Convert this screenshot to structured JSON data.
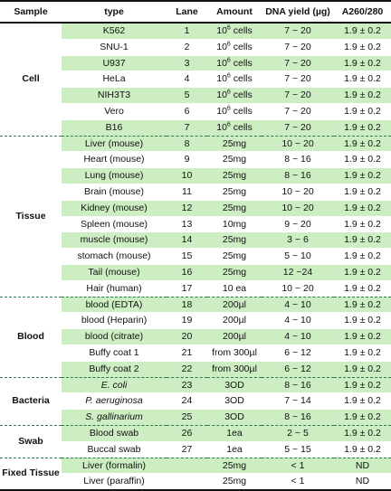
{
  "headers": [
    "Sample",
    "type",
    "Lane",
    "Amount",
    "DNA yield (µg)",
    "A260/280"
  ],
  "groups": [
    {
      "name": "Cell",
      "rows": [
        {
          "type": "K562",
          "lane": "1",
          "amount_base": "10",
          "amount_sup": "6",
          "amount_unit": " cells",
          "dna": "7 ~ 20",
          "a260": "1.9 ± 0.2"
        },
        {
          "type": "SNU-1",
          "lane": "2",
          "amount_base": "10",
          "amount_sup": "6",
          "amount_unit": " cells",
          "dna": "7 ~ 20",
          "a260": "1.9 ± 0.2"
        },
        {
          "type": "U937",
          "lane": "3",
          "amount_base": "10",
          "amount_sup": "6",
          "amount_unit": " cells",
          "dna": "7 ~ 20",
          "a260": "1.9 ± 0.2"
        },
        {
          "type": "HeLa",
          "lane": "4",
          "amount_base": "10",
          "amount_sup": "6",
          "amount_unit": " cells",
          "dna": "7 ~ 20",
          "a260": "1.9 ± 0.2"
        },
        {
          "type": "NIH3T3",
          "lane": "5",
          "amount_base": "10",
          "amount_sup": "6",
          "amount_unit": " cells",
          "dna": "7 ~ 20",
          "a260": "1.9 ± 0.2"
        },
        {
          "type": "Vero",
          "lane": "6",
          "amount_base": "10",
          "amount_sup": "6",
          "amount_unit": " cells",
          "dna": "7 ~ 20",
          "a260": "1.9 ± 0.2"
        },
        {
          "type": "B16",
          "lane": "7",
          "amount_base": "10",
          "amount_sup": "6",
          "amount_unit": " cells",
          "dna": "7 ~ 20",
          "a260": "1.9 ± 0.2"
        }
      ]
    },
    {
      "name": "Tissue",
      "rows": [
        {
          "type": "Liver (mouse)",
          "lane": "8",
          "amount": "25mg",
          "dna": "10 ~ 20",
          "a260": "1.9 ± 0.2"
        },
        {
          "type": "Heart (mouse)",
          "lane": "9",
          "amount": "25mg",
          "dna": "8 ~ 16",
          "a260": "1.9 ± 0.2"
        },
        {
          "type": "Lung (mouse)",
          "lane": "10",
          "amount": "25mg",
          "dna": "8 ~ 16",
          "a260": "1.9 ± 0.2"
        },
        {
          "type": "Brain (mouse)",
          "lane": "11",
          "amount": "25mg",
          "dna": "10 ~ 20",
          "a260": "1.9 ± 0.2"
        },
        {
          "type": "Kidney (mouse)",
          "lane": "12",
          "amount": "25mg",
          "dna": "10 ~ 20",
          "a260": "1.9 ± 0.2"
        },
        {
          "type": "Spleen (mouse)",
          "lane": "13",
          "amount": "10mg",
          "dna": "9 ~ 20",
          "a260": "1.9 ± 0.2"
        },
        {
          "type": "muscle (mouse)",
          "lane": "14",
          "amount": "25mg",
          "dna": "3 ~ 6",
          "a260": "1.9 ± 0.2"
        },
        {
          "type": "stomach (mouse)",
          "lane": "15",
          "amount": "25mg",
          "dna": "5 ~ 10",
          "a260": "1.9 ± 0.2"
        },
        {
          "type": "Tail (mouse)",
          "lane": "16",
          "amount": "25mg",
          "dna": "12 ~24",
          "a260": "1.9 ± 0.2"
        },
        {
          "type": "Hair (human)",
          "lane": "17",
          "amount": "10 ea",
          "dna": "10 ~ 20",
          "a260": "1.9 ± 0.2"
        }
      ]
    },
    {
      "name": "Blood",
      "rows": [
        {
          "type": "blood (EDTA)",
          "lane": "18",
          "amount": "200µl",
          "dna": "4 ~ 10",
          "a260": "1.9 ± 0.2"
        },
        {
          "type": "blood (Heparin)",
          "lane": "19",
          "amount": "200µl",
          "dna": "4 ~ 10",
          "a260": "1.9 ± 0.2"
        },
        {
          "type": "blood (citrate)",
          "lane": "20",
          "amount": "200µl",
          "dna": "4 ~ 10",
          "a260": "1.9 ± 0.2"
        },
        {
          "type": "Buffy coat 1",
          "lane": "21",
          "amount": "from 300µl",
          "dna": "6 ~ 12",
          "a260": "1.9 ± 0.2"
        },
        {
          "type": "Buffy coat 2",
          "lane": "22",
          "amount": "from 300µl",
          "dna": "6 ~ 12",
          "a260": "1.9 ± 0.2"
        }
      ]
    },
    {
      "name": "Bacteria",
      "italic": true,
      "rows": [
        {
          "type": "E. coli",
          "lane": "23",
          "amount": "3OD",
          "dna": "8 ~ 16",
          "a260": "1.9 ± 0.2"
        },
        {
          "type": "P. aeruginosa",
          "lane": "24",
          "amount": "3OD",
          "dna": "7 ~ 14",
          "a260": "1.9 ± 0.2"
        },
        {
          "type": "S. gallinarium",
          "lane": "25",
          "amount": "3OD",
          "dna": "8 ~ 16",
          "a260": "1.9 ± 0.2"
        }
      ]
    },
    {
      "name": "Swab",
      "rows": [
        {
          "type": "Blood swab",
          "lane": "26",
          "amount": "1ea",
          "dna": "2 ~ 5",
          "a260": "1.9 ± 0.2"
        },
        {
          "type": "Buccal swab",
          "lane": "27",
          "amount": "1ea",
          "dna": "5 ~ 15",
          "a260": "1.9 ± 0.2"
        }
      ]
    },
    {
      "name": "Fixed Tissue",
      "rows": [
        {
          "type": "Liver (formalin)",
          "lane": "",
          "amount": "25mg",
          "dna": "< 1",
          "a260": "ND"
        },
        {
          "type": "Liver (paraffin)",
          "lane": "",
          "amount": "25mg",
          "dna": "< 1",
          "a260": "ND"
        }
      ]
    }
  ],
  "colors": {
    "stripe": "#cdeec2",
    "rule": "#111111",
    "group_divider": "#2a7a52"
  }
}
